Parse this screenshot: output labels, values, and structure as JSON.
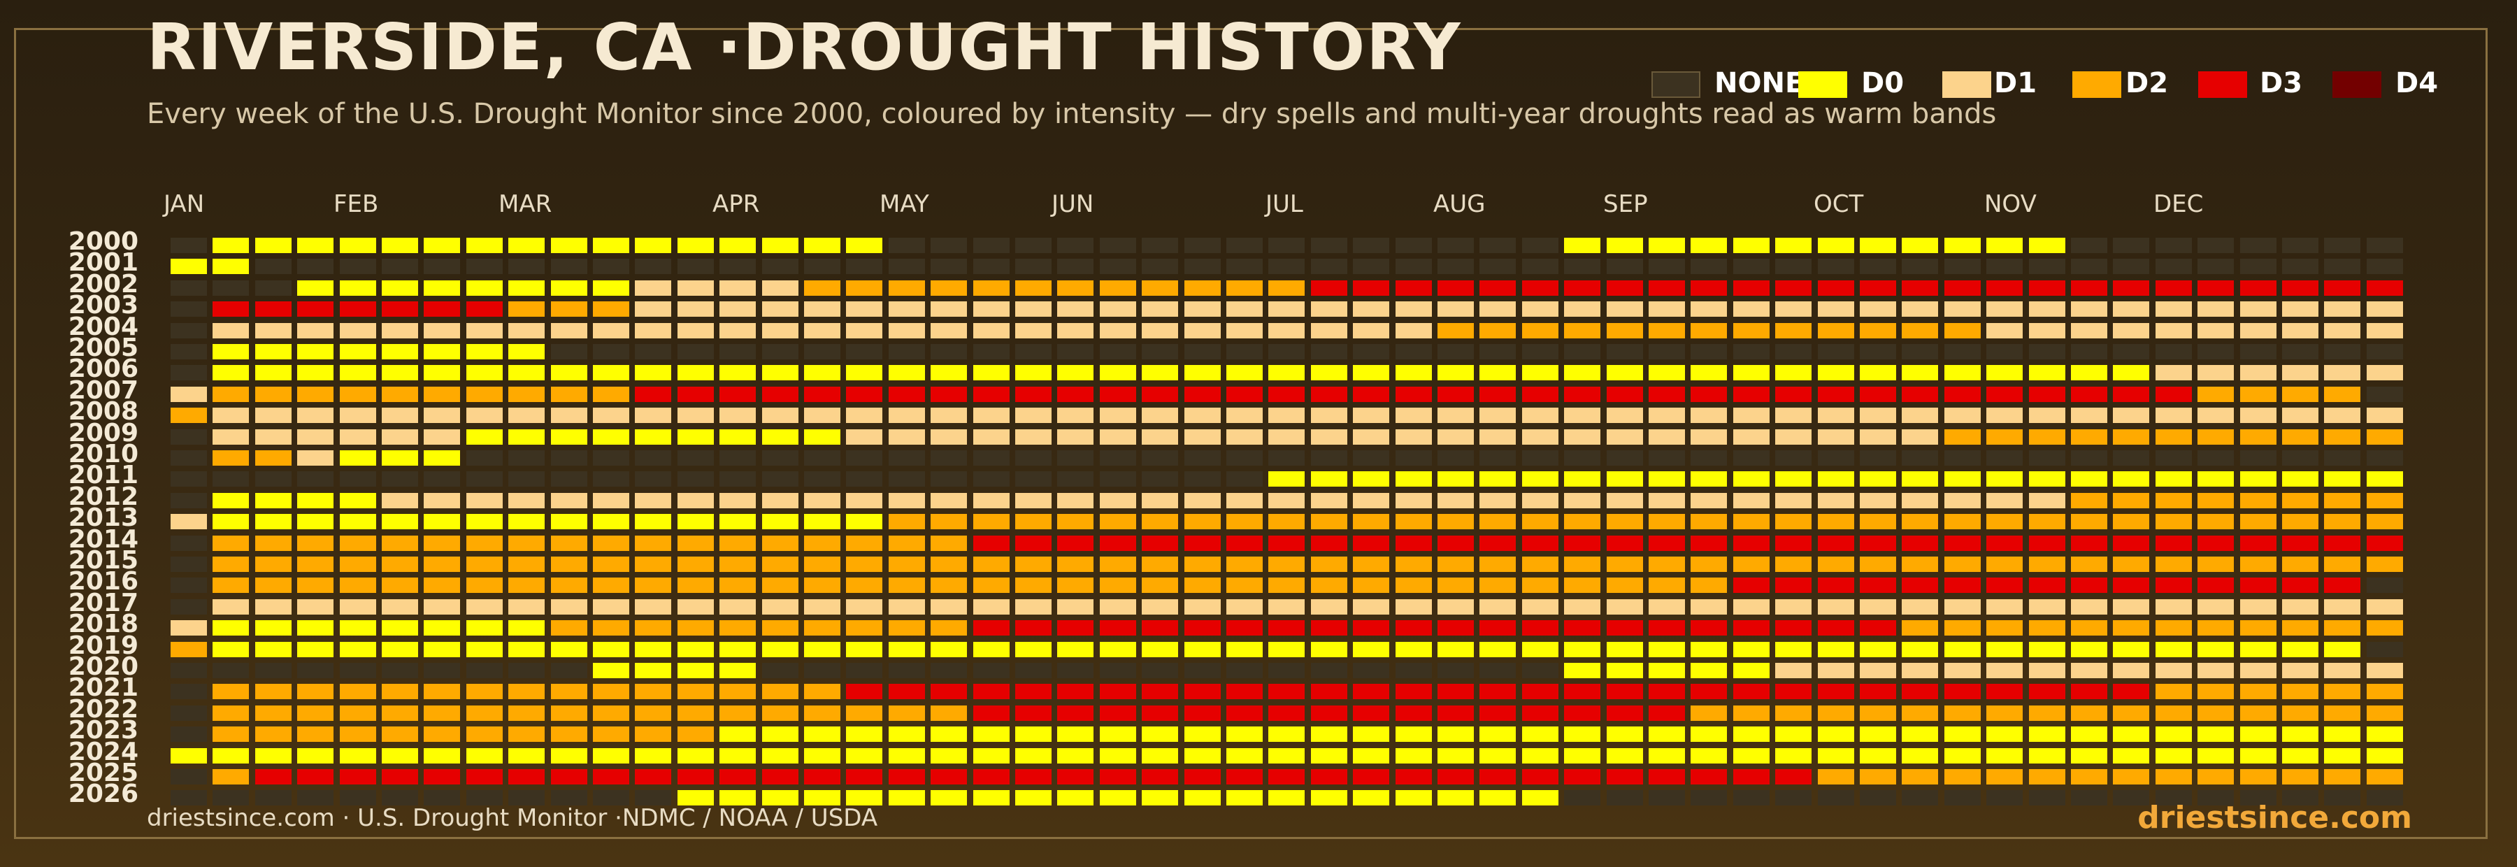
{
  "title": "RIVERSIDE, CA ·DROUGHT HISTORY",
  "subtitle": "Every week of the U.S. Drought Monitor since 2000, coloured by intensity — dry spells and multi-year droughts read as warm bands",
  "footer": {
    "source": "driestsince.com  · U.S. Drought Monitor ·NDMC / NOAA / USDA",
    "brand": "driestsince.com"
  },
  "colors": {
    "none": "#3c3220",
    "D0": "#ffff00",
    "D1": "#fcd38c",
    "D2": "#ffaa00",
    "D3": "#e60000",
    "D4": "#730000"
  },
  "legend": [
    {
      "key": "none",
      "label": "NONE"
    },
    {
      "key": "D0",
      "label": "D0"
    },
    {
      "key": "D1",
      "label": "D1"
    },
    {
      "key": "D2",
      "label": "D2"
    },
    {
      "key": "D3",
      "label": "D3"
    },
    {
      "key": "D4",
      "label": "D4"
    }
  ],
  "chart_data": {
    "type": "heatmap",
    "x_labels": [
      "JAN",
      "FEB",
      "MAR",
      "APR",
      "MAY",
      "JUN",
      "JUL",
      "AUG",
      "SEP",
      "OCT",
      "NOV",
      "DEC"
    ],
    "y_labels": [
      "2000",
      "2001",
      "2002",
      "2003",
      "2004",
      "2005",
      "2006",
      "2007",
      "2008",
      "2009",
      "2010",
      "2011",
      "2012",
      "2013",
      "2014",
      "2015",
      "2016",
      "2017",
      "2018",
      "2019",
      "2020",
      "2021",
      "2022",
      "2023",
      "2024",
      "2025",
      "2026"
    ],
    "weeks_per_year": 53,
    "categories": [
      "none",
      "D0",
      "D1",
      "D2",
      "D3",
      "D4"
    ],
    "rows": [
      {
        "year": "2000",
        "runs": [
          [
            0,
            1
          ],
          [
            1,
            16
          ],
          [
            0,
            16
          ],
          [
            1,
            12
          ],
          [
            0,
            8
          ]
        ]
      },
      {
        "year": "2001",
        "runs": [
          [
            1,
            2
          ],
          [
            0,
            51
          ]
        ]
      },
      {
        "year": "2002",
        "runs": [
          [
            0,
            3
          ],
          [
            1,
            8
          ],
          [
            2,
            4
          ],
          [
            3,
            12
          ],
          [
            4,
            26
          ]
        ]
      },
      {
        "year": "2003",
        "runs": [
          [
            0,
            1
          ],
          [
            4,
            7
          ],
          [
            3,
            3
          ],
          [
            2,
            42
          ]
        ]
      },
      {
        "year": "2004",
        "runs": [
          [
            0,
            1
          ],
          [
            2,
            29
          ],
          [
            3,
            13
          ],
          [
            2,
            10
          ]
        ]
      },
      {
        "year": "2005",
        "runs": [
          [
            0,
            1
          ],
          [
            1,
            8
          ],
          [
            0,
            44
          ]
        ]
      },
      {
        "year": "2006",
        "runs": [
          [
            0,
            1
          ],
          [
            1,
            46
          ],
          [
            2,
            6
          ]
        ]
      },
      {
        "year": "2007",
        "runs": [
          [
            2,
            1
          ],
          [
            3,
            10
          ],
          [
            4,
            37
          ],
          [
            3,
            4
          ],
          [
            0,
            1
          ]
        ]
      },
      {
        "year": "2008",
        "runs": [
          [
            3,
            1
          ],
          [
            2,
            52
          ]
        ]
      },
      {
        "year": "2009",
        "runs": [
          [
            0,
            1
          ],
          [
            2,
            6
          ],
          [
            1,
            9
          ],
          [
            2,
            26
          ],
          [
            3,
            11
          ]
        ]
      },
      {
        "year": "2010",
        "runs": [
          [
            0,
            1
          ],
          [
            3,
            2
          ],
          [
            2,
            1
          ],
          [
            1,
            3
          ],
          [
            0,
            46
          ]
        ]
      },
      {
        "year": "2011",
        "runs": [
          [
            0,
            26
          ],
          [
            1,
            27
          ]
        ]
      },
      {
        "year": "2012",
        "runs": [
          [
            0,
            1
          ],
          [
            1,
            4
          ],
          [
            2,
            40
          ],
          [
            3,
            8
          ]
        ]
      },
      {
        "year": "2013",
        "runs": [
          [
            2,
            1
          ],
          [
            1,
            16
          ],
          [
            3,
            36
          ]
        ]
      },
      {
        "year": "2014",
        "runs": [
          [
            0,
            1
          ],
          [
            3,
            18
          ],
          [
            4,
            34
          ]
        ]
      },
      {
        "year": "2015",
        "runs": [
          [
            0,
            1
          ],
          [
            3,
            52
          ]
        ]
      },
      {
        "year": "2016",
        "runs": [
          [
            0,
            1
          ],
          [
            3,
            36
          ],
          [
            4,
            15
          ],
          [
            0,
            1
          ]
        ]
      },
      {
        "year": "2017",
        "runs": [
          [
            0,
            1
          ],
          [
            2,
            52
          ]
        ]
      },
      {
        "year": "2018",
        "runs": [
          [
            2,
            1
          ],
          [
            1,
            8
          ],
          [
            3,
            10
          ],
          [
            4,
            22
          ],
          [
            3,
            12
          ]
        ]
      },
      {
        "year": "2019",
        "runs": [
          [
            3,
            1
          ],
          [
            1,
            51
          ],
          [
            0,
            1
          ]
        ]
      },
      {
        "year": "2020",
        "runs": [
          [
            0,
            10
          ],
          [
            1,
            4
          ],
          [
            0,
            19
          ],
          [
            1,
            5
          ],
          [
            2,
            15
          ]
        ]
      },
      {
        "year": "2021",
        "runs": [
          [
            0,
            1
          ],
          [
            3,
            15
          ],
          [
            4,
            31
          ],
          [
            3,
            6
          ]
        ]
      },
      {
        "year": "2022",
        "runs": [
          [
            0,
            1
          ],
          [
            3,
            18
          ],
          [
            4,
            17
          ],
          [
            3,
            17
          ]
        ]
      },
      {
        "year": "2023",
        "runs": [
          [
            0,
            1
          ],
          [
            3,
            12
          ],
          [
            1,
            40
          ]
        ]
      },
      {
        "year": "2024",
        "runs": [
          [
            1,
            53
          ]
        ]
      },
      {
        "year": "2025",
        "runs": [
          [
            0,
            1
          ],
          [
            3,
            1
          ],
          [
            4,
            37
          ],
          [
            3,
            14
          ]
        ]
      },
      {
        "year": "2026",
        "runs": [
          [
            0,
            12
          ],
          [
            1,
            21
          ],
          [
            0,
            20
          ]
        ]
      }
    ]
  }
}
